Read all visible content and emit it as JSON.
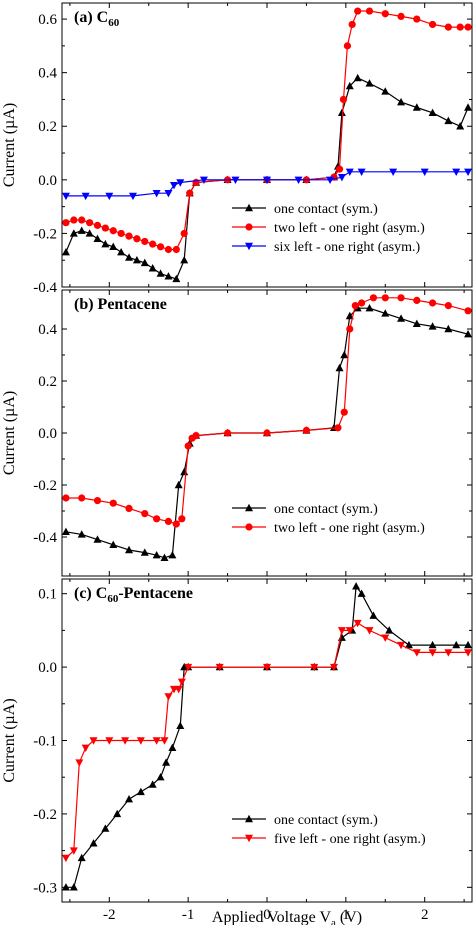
{
  "chart_data": [
    {
      "type": "line",
      "title": "(a) C",
      "title_sub": "60",
      "title_suffix": "",
      "xlabel": "",
      "ylabel": "Current (µA)",
      "xlim": [
        -2.6,
        2.6
      ],
      "ylim": [
        -0.4,
        0.66
      ],
      "yticks": [
        -0.4,
        -0.2,
        0.0,
        0.2,
        0.4,
        0.6
      ],
      "ytick_labels": [
        "-0.4",
        "-0.2",
        "0.0",
        "0.2",
        "0.4",
        "0.6"
      ],
      "legend_position": "center-right",
      "series": [
        {
          "name": "one contact (sym.)",
          "color": "#000000",
          "marker": "triangle-up",
          "x": [
            -2.55,
            -2.45,
            -2.35,
            -2.25,
            -2.15,
            -2.05,
            -1.95,
            -1.85,
            -1.75,
            -1.65,
            -1.55,
            -1.45,
            -1.35,
            -1.25,
            -1.15,
            -1.05,
            -0.98,
            -0.9,
            -0.5,
            0.0,
            0.5,
            0.85,
            0.9,
            0.95,
            1.05,
            1.15,
            1.3,
            1.5,
            1.7,
            1.9,
            2.1,
            2.3,
            2.45,
            2.55
          ],
          "y": [
            -0.27,
            -0.2,
            -0.19,
            -0.2,
            -0.22,
            -0.24,
            -0.25,
            -0.27,
            -0.29,
            -0.3,
            -0.31,
            -0.33,
            -0.35,
            -0.36,
            -0.37,
            -0.3,
            -0.05,
            -0.01,
            0.0,
            0.0,
            0.0,
            0.01,
            0.05,
            0.25,
            0.35,
            0.38,
            0.36,
            0.33,
            0.29,
            0.27,
            0.25,
            0.22,
            0.2,
            0.27
          ]
        },
        {
          "name": "two left - one right (asym.)",
          "color": "#ff0000",
          "marker": "circle",
          "x": [
            -2.55,
            -2.45,
            -2.35,
            -2.25,
            -2.15,
            -2.05,
            -1.95,
            -1.85,
            -1.75,
            -1.65,
            -1.55,
            -1.45,
            -1.35,
            -1.25,
            -1.15,
            -1.05,
            -0.98,
            -0.9,
            -0.5,
            0.0,
            0.5,
            0.85,
            0.92,
            0.97,
            1.02,
            1.08,
            1.15,
            1.3,
            1.5,
            1.7,
            1.9,
            2.1,
            2.3,
            2.45,
            2.55
          ],
          "y": [
            -0.16,
            -0.15,
            -0.15,
            -0.16,
            -0.17,
            -0.18,
            -0.19,
            -0.2,
            -0.21,
            -0.22,
            -0.23,
            -0.24,
            -0.25,
            -0.26,
            -0.26,
            -0.2,
            -0.05,
            -0.01,
            0.0,
            0.0,
            0.0,
            0.01,
            0.04,
            0.3,
            0.5,
            0.58,
            0.63,
            0.63,
            0.62,
            0.61,
            0.6,
            0.58,
            0.57,
            0.57,
            0.57
          ]
        },
        {
          "name": "six left - one right (asym.)",
          "color": "#0000ff",
          "marker": "triangle-down",
          "x": [
            -2.55,
            -2.3,
            -2.0,
            -1.7,
            -1.4,
            -1.25,
            -1.18,
            -1.1,
            -0.8,
            -0.4,
            0.0,
            0.4,
            0.8,
            0.95,
            1.05,
            1.2,
            1.6,
            2.0,
            2.4,
            2.55
          ],
          "y": [
            -0.06,
            -0.06,
            -0.06,
            -0.06,
            -0.05,
            -0.05,
            -0.02,
            -0.01,
            0.0,
            0.0,
            0.0,
            0.0,
            0.0,
            0.01,
            0.03,
            0.03,
            0.03,
            0.03,
            0.03,
            0.03
          ]
        }
      ]
    },
    {
      "type": "line",
      "title": "(b) Pentacene",
      "title_sub": "",
      "title_suffix": "",
      "xlabel": "",
      "ylabel": "Current (µA)",
      "xlim": [
        -2.6,
        2.6
      ],
      "ylim": [
        -0.55,
        0.55
      ],
      "yticks": [
        -0.4,
        -0.2,
        0.0,
        0.2,
        0.4
      ],
      "ytick_labels": [
        "-0.4",
        "-0.2",
        "0.0",
        "0.2",
        "0.4"
      ],
      "legend_position": "lower-right",
      "series": [
        {
          "name": "one contact (sym.)",
          "color": "#000000",
          "marker": "triangle-up",
          "x": [
            -2.55,
            -2.35,
            -2.15,
            -1.95,
            -1.75,
            -1.55,
            -1.4,
            -1.3,
            -1.2,
            -1.12,
            -1.05,
            -0.98,
            -0.9,
            -0.5,
            0.0,
            0.5,
            0.85,
            0.92,
            0.98,
            1.05,
            1.15,
            1.3,
            1.5,
            1.7,
            1.9,
            2.1,
            2.3,
            2.55
          ],
          "y": [
            -0.38,
            -0.39,
            -0.41,
            -0.43,
            -0.45,
            -0.46,
            -0.47,
            -0.48,
            -0.47,
            -0.2,
            -0.15,
            -0.04,
            -0.01,
            0.0,
            0.0,
            0.01,
            0.02,
            0.25,
            0.3,
            0.45,
            0.48,
            0.48,
            0.46,
            0.44,
            0.42,
            0.41,
            0.4,
            0.38
          ]
        },
        {
          "name": "two left - one right (asym.)",
          "color": "#ff0000",
          "marker": "circle",
          "x": [
            -2.55,
            -2.35,
            -2.15,
            -1.95,
            -1.75,
            -1.55,
            -1.4,
            -1.25,
            -1.15,
            -1.08,
            -1.0,
            -0.95,
            -0.9,
            -0.5,
            0.0,
            0.5,
            0.9,
            0.98,
            1.05,
            1.12,
            1.2,
            1.35,
            1.5,
            1.7,
            1.9,
            2.1,
            2.3,
            2.55
          ],
          "y": [
            -0.25,
            -0.25,
            -0.26,
            -0.27,
            -0.29,
            -0.31,
            -0.33,
            -0.34,
            -0.35,
            -0.33,
            -0.05,
            -0.02,
            -0.01,
            0.0,
            0.0,
            0.01,
            0.02,
            0.08,
            0.4,
            0.49,
            0.5,
            0.52,
            0.52,
            0.52,
            0.51,
            0.5,
            0.49,
            0.47
          ]
        }
      ]
    },
    {
      "type": "line",
      "title": "(c) C",
      "title_sub": "60",
      "title_suffix": "-Pentacene",
      "xlabel": "Applied Voltage V",
      "xlabel_sub": "a",
      "xlabel_suffix": " (V)",
      "ylabel": "Current (µA)",
      "xlim": [
        -2.6,
        2.6
      ],
      "ylim": [
        -0.32,
        0.12
      ],
      "yticks": [
        -0.3,
        -0.2,
        -0.1,
        0.0,
        0.1
      ],
      "ytick_labels": [
        "-0.3",
        "-0.2",
        "-0.1",
        "0.0",
        "0.1"
      ],
      "xticks": [
        -2,
        -1,
        0,
        1,
        2
      ],
      "xtick_labels": [
        "-2",
        "-1",
        "0",
        "1",
        "2"
      ],
      "legend_position": "lower-right",
      "series": [
        {
          "name": "one contact (sym.)",
          "color": "#000000",
          "marker": "triangle-up",
          "x": [
            -2.55,
            -2.45,
            -2.35,
            -2.2,
            -2.05,
            -1.9,
            -1.75,
            -1.6,
            -1.45,
            -1.35,
            -1.28,
            -1.2,
            -1.1,
            -1.05,
            -1.0,
            -0.6,
            0.0,
            0.6,
            0.85,
            0.95,
            1.08,
            1.13,
            1.2,
            1.35,
            1.55,
            1.8,
            2.1,
            2.4,
            2.55
          ],
          "y": [
            -0.3,
            -0.3,
            -0.26,
            -0.24,
            -0.22,
            -0.2,
            -0.18,
            -0.17,
            -0.16,
            -0.15,
            -0.13,
            -0.11,
            -0.08,
            0.0,
            0.0,
            0.0,
            0.0,
            0.0,
            0.0,
            0.04,
            0.05,
            0.11,
            0.1,
            0.07,
            0.05,
            0.03,
            0.03,
            0.03,
            0.03
          ]
        },
        {
          "name": "five left - one right (asym.)",
          "color": "#ff0000",
          "marker": "triangle-down",
          "x": [
            -2.55,
            -2.45,
            -2.38,
            -2.3,
            -2.2,
            -2.0,
            -1.8,
            -1.6,
            -1.4,
            -1.3,
            -1.25,
            -1.18,
            -1.12,
            -1.08,
            -1.0,
            -0.6,
            0.0,
            0.6,
            0.85,
            0.95,
            1.05,
            1.15,
            1.3,
            1.5,
            1.7,
            1.9,
            2.1,
            2.3,
            2.55
          ],
          "y": [
            -0.26,
            -0.25,
            -0.13,
            -0.11,
            -0.1,
            -0.1,
            -0.1,
            -0.1,
            -0.1,
            -0.1,
            -0.04,
            -0.03,
            -0.03,
            -0.02,
            0.0,
            0.0,
            0.0,
            0.0,
            0.0,
            0.05,
            0.05,
            0.06,
            0.05,
            0.04,
            0.03,
            0.02,
            0.02,
            0.02,
            0.02
          ]
        }
      ]
    }
  ]
}
